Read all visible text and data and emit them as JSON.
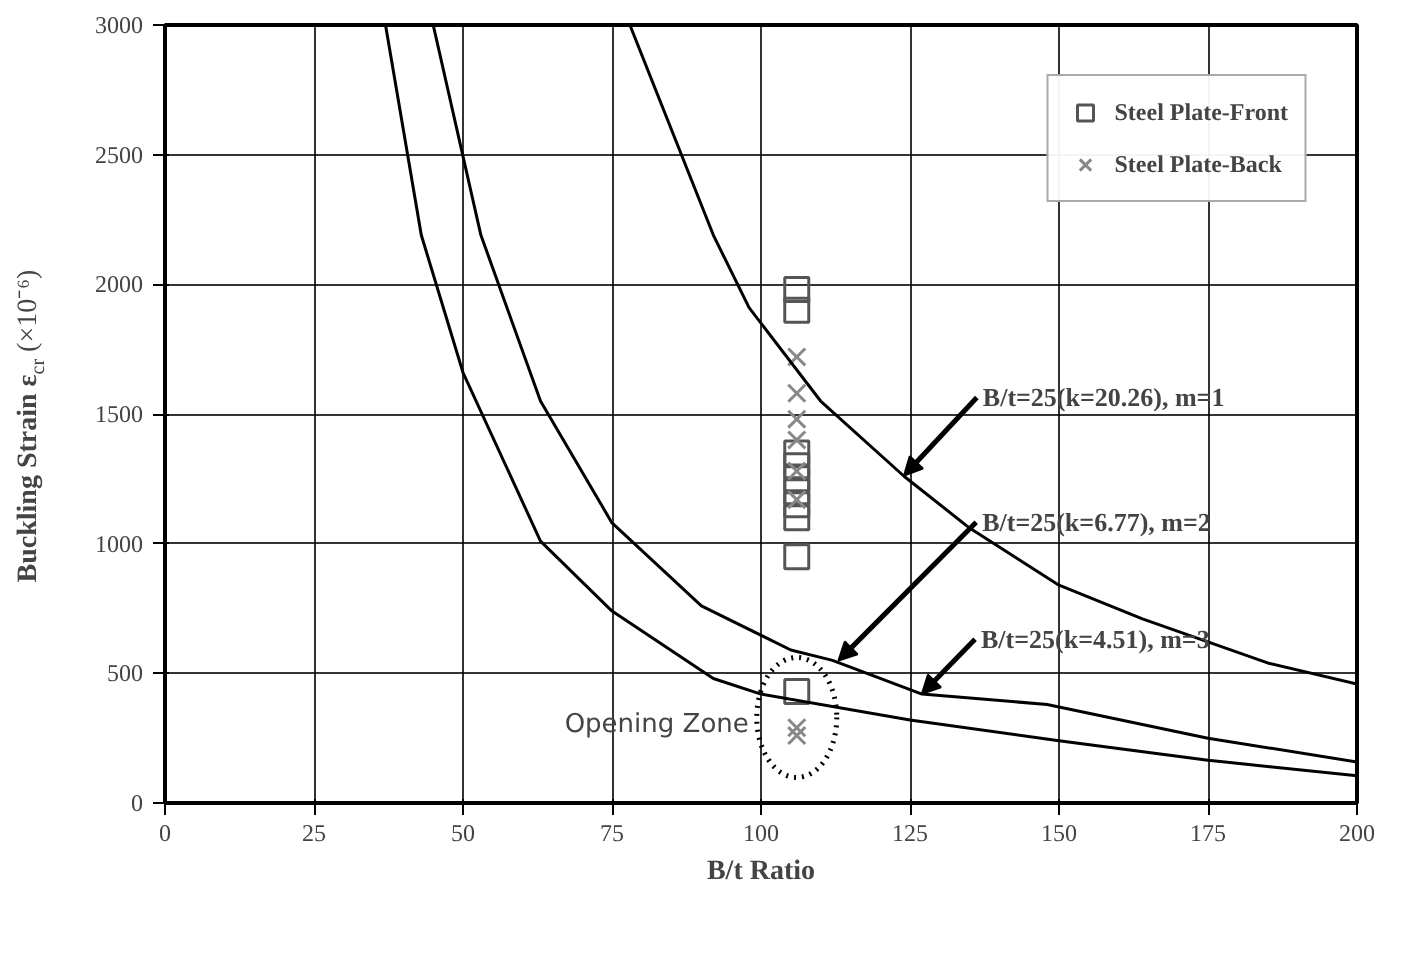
{
  "chart_data": {
    "type": "scatter",
    "xlabel": "B/t Ratio",
    "ylabel": "Buckling Strain ε$_{cr}$ (×10⁻⁶)",
    "xlim": [
      0,
      200
    ],
    "ylim": [
      0,
      3000
    ],
    "xticks": [
      0,
      25,
      50,
      75,
      100,
      125,
      150,
      175,
      200
    ],
    "yticks": [
      0,
      500,
      1000,
      1500,
      2000,
      2500,
      3000
    ],
    "grid": true,
    "legend": "top right",
    "series": [
      {
        "name": "Steel Plate-Front",
        "marker": "square",
        "color": "#555555",
        "x": [
          106,
          106,
          106,
          106,
          106,
          106,
          106,
          106,
          106,
          106
        ],
        "values": [
          1980,
          1900,
          1350,
          1300,
          1250,
          1200,
          1150,
          1100,
          950,
          430
        ]
      },
      {
        "name": "Steel Plate-Back",
        "marker": "cross",
        "color": "#888888",
        "x": [
          106,
          106,
          106,
          106,
          106,
          106,
          106,
          106
        ],
        "values": [
          1720,
          1580,
          1480,
          1400,
          1280,
          1170,
          290,
          260
        ]
      },
      {
        "type": "line",
        "color": "#000000",
        "x": [
          78,
          92,
          98,
          110,
          124,
          135,
          150,
          164,
          185,
          200
        ],
        "values": [
          3000,
          2190,
          1910,
          1550,
          1260,
          1060,
          840,
          710,
          540,
          459
        ]
      },
      {
        "type": "line",
        "color": "#000000",
        "x": [
          45,
          53,
          63,
          75,
          90,
          105,
          112,
          127,
          148,
          175,
          200
        ],
        "values": [
          3000,
          2190,
          1550,
          1080,
          760,
          590,
          550,
          420,
          380,
          250,
          158
        ]
      },
      {
        "type": "line",
        "color": "#000000",
        "x": [
          37,
          43,
          50,
          63,
          75,
          92,
          100,
          125,
          150,
          175,
          200
        ],
        "values": [
          3000,
          2190,
          1660,
          1010,
          740,
          480,
          420,
          320,
          240,
          165,
          105
        ]
      }
    ],
    "annotations": [
      {
        "text": "B/t=25(k=20.26), m=1",
        "x": 124,
        "y": 1263
      },
      {
        "text": "B/t=25(k=6.77), m=2",
        "x": 113,
        "y": 549
      },
      {
        "text": "B/t=25(k=4.51), m=3",
        "x": 127,
        "y": 421
      },
      {
        "text": "Opening Zone",
        "x": 106,
        "y": 330
      }
    ]
  }
}
